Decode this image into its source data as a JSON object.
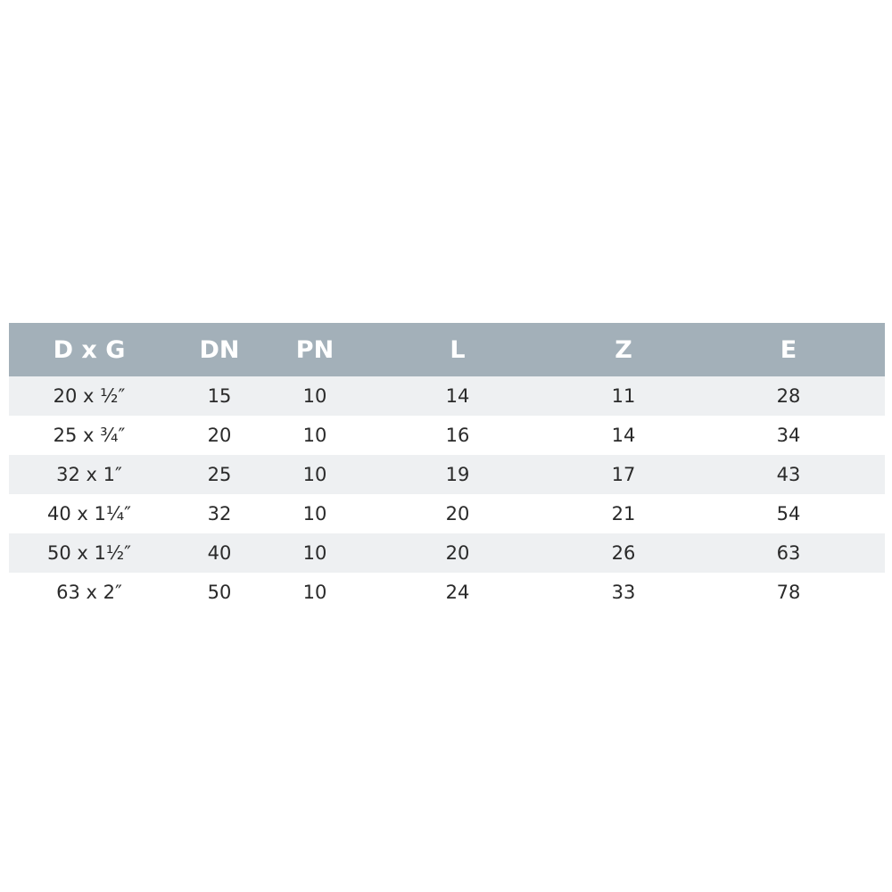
{
  "table": {
    "headers": [
      "D x G",
      "DN",
      "PN",
      "L",
      "Z",
      "E"
    ],
    "rows": [
      [
        "20 x ½″",
        "15",
        "10",
        "14",
        "11",
        "28"
      ],
      [
        "25 x ¾″",
        "20",
        "10",
        "16",
        "14",
        "34"
      ],
      [
        "32 x 1″",
        "25",
        "10",
        "19",
        "17",
        "43"
      ],
      [
        "40 x 1¼″",
        "32",
        "10",
        "20",
        "21",
        "54"
      ],
      [
        "50 x 1½″",
        "40",
        "10",
        "20",
        "26",
        "63"
      ],
      [
        "63 x 2″",
        "50",
        "10",
        "24",
        "33",
        "78"
      ]
    ]
  },
  "colors": {
    "header_bg": "#a3b0b9",
    "alt_row_bg": "#eef0f2"
  }
}
